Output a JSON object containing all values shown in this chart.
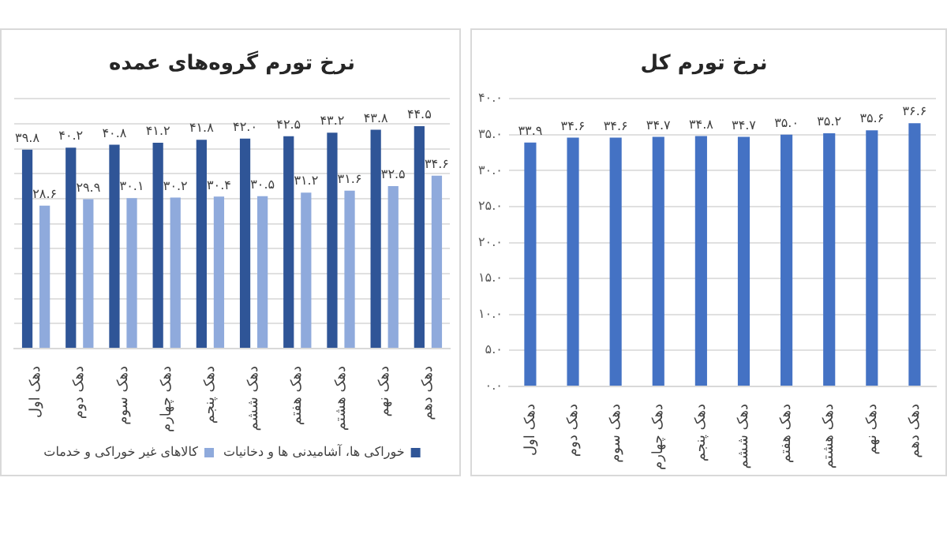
{
  "chart_data": [
    {
      "type": "bar",
      "title": "نرخ تورم گروه‌های عمده",
      "categories": [
        "دهک اول",
        "دهک دوم",
        "دهک سوم",
        "دهک چهارم",
        "دهک پنجم",
        "دهک ششم",
        "دهک هفتم",
        "دهک هشتم",
        "دهک نهم",
        "دهک دهم"
      ],
      "series": [
        {
          "name": "خوراکی ها، آشامیدنی ها و دخانیات",
          "color": "#2f5597",
          "values": [
            39.8,
            40.2,
            40.8,
            41.2,
            41.8,
            42.0,
            42.5,
            43.2,
            43.8,
            44.5
          ],
          "value_labels": [
            "۳۹.۸",
            "۴۰.۲",
            "۴۰.۸",
            "۴۱.۲",
            "۴۱.۸",
            "۴۲.۰",
            "۴۲.۵",
            "۴۳.۲",
            "۴۳.۸",
            "۴۴.۵"
          ]
        },
        {
          "name": "کالاهای غیر خوراکی و خدمات",
          "color": "#8faadc",
          "values": [
            28.6,
            29.9,
            30.1,
            30.2,
            30.4,
            30.5,
            31.2,
            31.6,
            32.5,
            34.6
          ],
          "value_labels": [
            "۲۸.۶",
            "۲۹.۹",
            "۳۰.۱",
            "۳۰.۲",
            "۳۰.۴",
            "۳۰.۵",
            "۳۱.۲",
            "۳۱.۶",
            "۳۲.۵",
            "۳۴.۶"
          ]
        }
      ],
      "ylim": [
        0,
        50
      ],
      "yticks": [
        {
          "value": 0,
          "label": null
        },
        {
          "value": 5,
          "label": null
        },
        {
          "value": 10,
          "label": null
        },
        {
          "value": 15,
          "label": null
        },
        {
          "value": 20,
          "label": null
        },
        {
          "value": 25,
          "label": null
        },
        {
          "value": 30,
          "label": null
        },
        {
          "value": 35,
          "label": null
        },
        {
          "value": 40,
          "label": null
        },
        {
          "value": 45,
          "label": null
        },
        {
          "value": 50,
          "label": null
        }
      ],
      "tick_labels": "x",
      "grid": "y",
      "legend": "bottom"
    },
    {
      "type": "bar",
      "title": "نرخ تورم کل",
      "categories": [
        "دهک اول",
        "دهک دوم",
        "دهک سوم",
        "دهک چهارم",
        "دهک پنجم",
        "دهک ششم",
        "دهک هفتم",
        "دهک هشتم",
        "دهک نهم",
        "دهک دهم"
      ],
      "series": [
        {
          "color": "#4472c4",
          "values": [
            33.9,
            34.6,
            34.6,
            34.7,
            34.8,
            34.7,
            35.0,
            35.2,
            35.6,
            36.6
          ],
          "value_labels": [
            "۳۳.۹",
            "۳۴.۶",
            "۳۴.۶",
            "۳۴.۷",
            "۳۴.۸",
            "۳۴.۷",
            "۳۵.۰",
            "۳۵.۲",
            "۳۵.۶",
            "۳۶.۶"
          ]
        }
      ],
      "ylim": [
        0,
        40
      ],
      "yticks": [
        {
          "value": 0,
          "label": "۰.۰"
        },
        {
          "value": 5,
          "label": "۵.۰"
        },
        {
          "value": 10,
          "label": "۱۰.۰"
        },
        {
          "value": 15,
          "label": "۱۵.۰"
        },
        {
          "value": 20,
          "label": "۲۰.۰"
        },
        {
          "value": 25,
          "label": "۲۵.۰"
        },
        {
          "value": 30,
          "label": "۳۰.۰"
        },
        {
          "value": 35,
          "label": "۳۵.۰"
        },
        {
          "value": 40,
          "label": "۴۰.۰"
        }
      ],
      "grid": "y",
      "legend": false
    }
  ]
}
